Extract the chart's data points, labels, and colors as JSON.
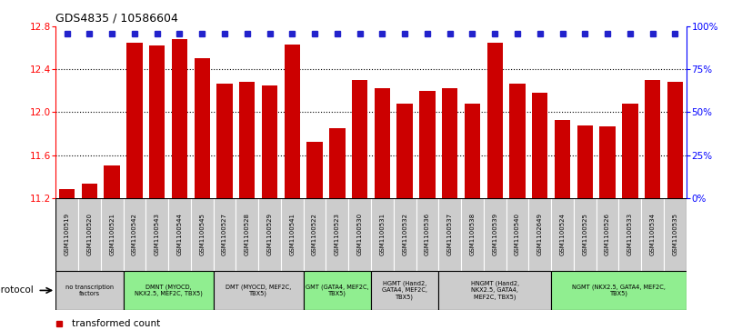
{
  "title": "GDS4835 / 10586604",
  "samples": [
    "GSM1100519",
    "GSM1100520",
    "GSM1100521",
    "GSM1100542",
    "GSM1100543",
    "GSM1100544",
    "GSM1100545",
    "GSM1100527",
    "GSM1100528",
    "GSM1100529",
    "GSM1100541",
    "GSM1100522",
    "GSM1100523",
    "GSM1100530",
    "GSM1100531",
    "GSM1100532",
    "GSM1100536",
    "GSM1100537",
    "GSM1100538",
    "GSM1100539",
    "GSM1100540",
    "GSM1102649",
    "GSM1100524",
    "GSM1100525",
    "GSM1100526",
    "GSM1100533",
    "GSM1100534",
    "GSM1100535"
  ],
  "values": [
    11.28,
    11.33,
    11.5,
    12.65,
    12.62,
    12.68,
    12.5,
    12.27,
    12.28,
    12.25,
    12.63,
    11.72,
    11.85,
    12.3,
    12.22,
    12.08,
    12.2,
    12.22,
    12.08,
    12.65,
    12.27,
    12.18,
    11.93,
    11.88,
    11.87,
    12.08,
    12.3,
    12.28
  ],
  "ylim_left": [
    11.2,
    12.8
  ],
  "ylim_right": [
    0,
    100
  ],
  "yticks_left": [
    11.2,
    11.6,
    12.0,
    12.4,
    12.8
  ],
  "yticks_right": [
    0,
    25,
    50,
    75,
    100
  ],
  "bar_color": "#cc0000",
  "percentile_color": "#2222cc",
  "bg_plot": "#ffffff",
  "bg_sample": "#cccccc",
  "bg_table": "#cccccc",
  "bg_table_green": "#90ee90",
  "protocol_groups": [
    {
      "label": "no transcription\nfactors",
      "start": 0,
      "end": 2,
      "green": false
    },
    {
      "label": "DMNT (MYOCD,\nNKX2.5, MEF2C, TBX5)",
      "start": 3,
      "end": 6,
      "green": true
    },
    {
      "label": "DMT (MYOCD, MEF2C,\nTBX5)",
      "start": 7,
      "end": 10,
      "green": false
    },
    {
      "label": "GMT (GATA4, MEF2C,\nTBX5)",
      "start": 11,
      "end": 13,
      "green": true
    },
    {
      "label": "HGMT (Hand2,\nGATA4, MEF2C,\nTBX5)",
      "start": 14,
      "end": 16,
      "green": false
    },
    {
      "label": "HNGMT (Hand2,\nNKX2.5, GATA4,\nMEF2C, TBX5)",
      "start": 17,
      "end": 21,
      "green": false
    },
    {
      "label": "NGMT (NKX2.5, GATA4, MEF2C,\nTBX5)",
      "start": 22,
      "end": 27,
      "green": true
    }
  ]
}
